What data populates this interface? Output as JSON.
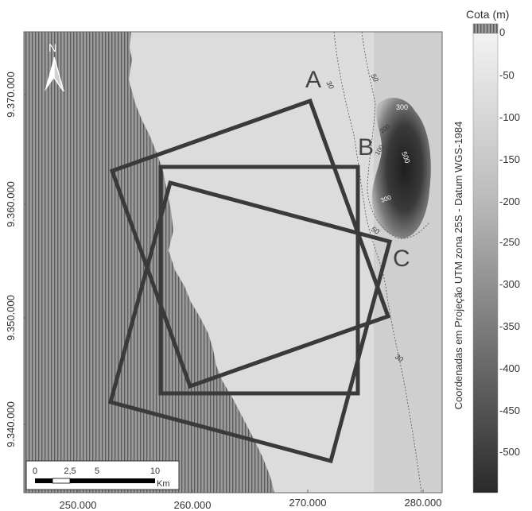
{
  "map": {
    "axis_y_labels": [
      "9.370.000",
      "9.360.000",
      "9.350.000",
      "9.340.000"
    ],
    "axis_x_labels": [
      "250.000",
      "260.000",
      "270.000",
      "280.000"
    ],
    "side_label": "Coordenadas em Projeção UTM zona 25S - Datum WGS-1984",
    "north_label": "N",
    "box_labels": [
      "A",
      "B",
      "C"
    ],
    "contour_labels": [
      "50",
      "30",
      "300",
      "200",
      "100",
      "500",
      "300",
      "50",
      "30"
    ]
  },
  "scale_bar": {
    "ticks": [
      "0",
      "2,5",
      "5",
      "10"
    ],
    "unit": "Km"
  },
  "legend": {
    "title": "Cota (m)",
    "ticks": [
      "0",
      "-50",
      "-100",
      "-150",
      "-200",
      "-250",
      "-300",
      "-350",
      "-400",
      "-450",
      "-500"
    ]
  },
  "colors": {
    "land": "#8c8c8c",
    "sea_shallow": "#dedede",
    "sea_deep": "#202020",
    "frame": "#3a3a3a"
  }
}
